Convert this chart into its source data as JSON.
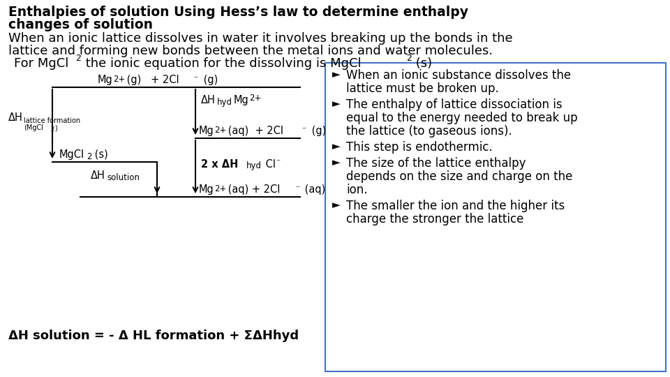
{
  "background_color": "#ffffff",
  "text_color": "#000000",
  "box_border_color": "#4472c4",
  "title_line1": "Enthalpies of solution Using Hess’s law to determine enthalpy",
  "title_line2": "changes of solution",
  "body_line1": "When an ionic lattice dissolves in water it involves breaking up the bonds in the",
  "body_line2": "lattice and forming new bonds between the metal ions and water molecules.",
  "for_line_prefix": "For MgCl",
  "for_line_mid": " the ionic equation for the dissolving is MgCl",
  "for_line_suffix": " (s)",
  "bullet_points": [
    [
      "When an ionic substance dissolves the",
      "lattice must be broken up."
    ],
    [
      "The enthalpy of lattice dissociation is",
      "equal to the energy needed to break up",
      "the lattice (to gaseous ions)."
    ],
    [
      "This step is endothermic."
    ],
    [
      "The size of the lattice enthalpy",
      "depends on the size and charge on the",
      "ion."
    ],
    [
      "The smaller the ion and the higher its",
      "charge the stronger the lattice"
    ]
  ],
  "formula": "ΔH solution = - Δ HL formation + ΣΔHhyd",
  "title_fontsize": 13.5,
  "body_fontsize": 13,
  "for_fontsize": 13,
  "diagram_fontsize": 10.5,
  "bullet_fontsize": 12,
  "formula_fontsize": 13
}
